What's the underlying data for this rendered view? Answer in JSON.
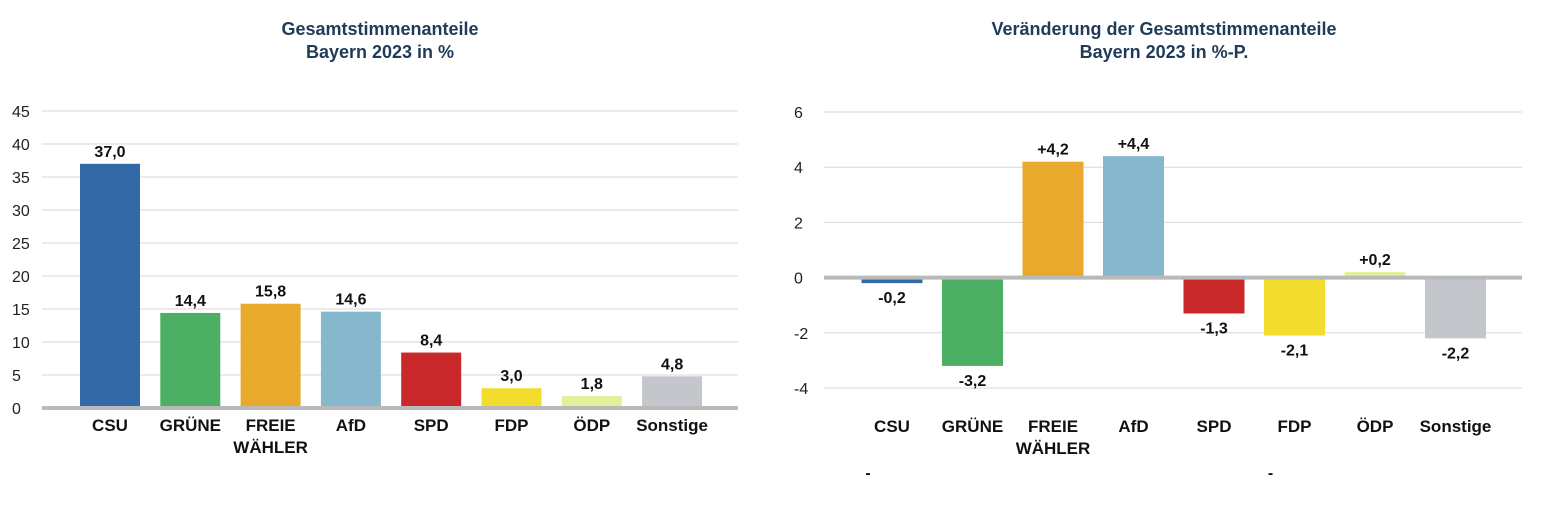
{
  "chart_data": [
    {
      "type": "bar",
      "title": "Gesamtstimmenanteile",
      "subtitle": "Bayern 2023 in %",
      "categories": [
        "CSU",
        "GRÜNE",
        "FREIE WÄHLER",
        "AfD",
        "SPD",
        "FDP",
        "ÖDP",
        "Sonstige"
      ],
      "category_lines": [
        [
          "CSU"
        ],
        [
          "GRÜNE"
        ],
        [
          "FREIE",
          "WÄHLER"
        ],
        [
          "AfD"
        ],
        [
          "SPD"
        ],
        [
          "FDP"
        ],
        [
          "ÖDP"
        ],
        [
          "Sonstige"
        ]
      ],
      "values": [
        37.0,
        14.4,
        15.8,
        14.6,
        8.4,
        3.0,
        1.8,
        4.8
      ],
      "value_labels": [
        "37,0",
        "14,4",
        "15,8",
        "14,6",
        "8,4",
        "3,0",
        "1,8",
        "4,8"
      ],
      "colors": [
        "#3469a8",
        "#4caf64",
        "#e8a92c",
        "#86b7cc",
        "#c8282a",
        "#f2dc2e",
        "#e3f09a",
        "#c3c6ca"
      ],
      "ylim": [
        0,
        45
      ],
      "yticks": [
        0,
        5,
        10,
        15,
        20,
        25,
        30,
        35,
        40,
        45
      ],
      "grid": true,
      "xlabel": "",
      "ylabel": ""
    },
    {
      "type": "bar",
      "title": "Veränderung der Gesamtstimmenanteile",
      "subtitle": "Bayern 2023 in %-P.",
      "categories": [
        "CSU",
        "GRÜNE",
        "FREIE WÄHLER",
        "AfD",
        "SPD",
        "FDP",
        "ÖDP",
        "Sonstige"
      ],
      "category_lines": [
        [
          "CSU"
        ],
        [
          "GRÜNE"
        ],
        [
          "FREIE",
          "WÄHLER"
        ],
        [
          "AfD"
        ],
        [
          "SPD"
        ],
        [
          "FDP"
        ],
        [
          "ÖDP"
        ],
        [
          "Sonstige"
        ]
      ],
      "values": [
        -0.2,
        -3.2,
        4.2,
        4.4,
        -1.3,
        -2.1,
        0.2,
        -2.2
      ],
      "value_labels": [
        "-0,2",
        "-3,2",
        "+4,2",
        "+4,4",
        "-1,3",
        "-2,1",
        "+0,2",
        "-2,2"
      ],
      "colors": [
        "#3469a8",
        "#4caf64",
        "#e8a92c",
        "#86b7cc",
        "#c8282a",
        "#f2dc2e",
        "#e3f09a",
        "#c3c6ca"
      ],
      "ylim": [
        -4,
        6
      ],
      "yticks": [
        -4,
        -2,
        0,
        2,
        4,
        6
      ],
      "grid": true,
      "xlabel": "",
      "ylabel": "",
      "footnote_marks": [
        {
          "category": "CSU",
          "text": "-"
        },
        {
          "category": "FDP",
          "text": "-"
        }
      ]
    }
  ]
}
